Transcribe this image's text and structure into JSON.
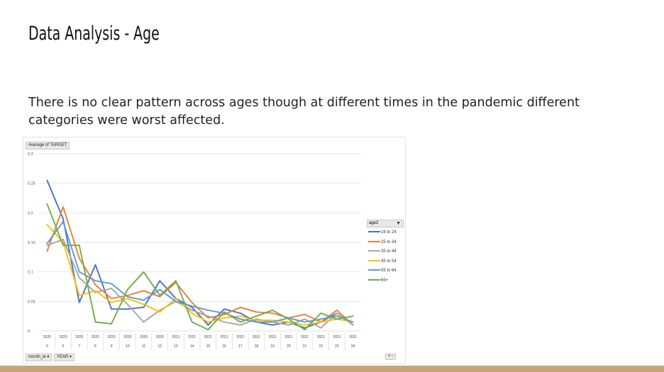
{
  "slide": {
    "title": "Data Analysis - Age",
    "subtitle": "There is no clear pattern across ages though at different times in the pandemic different categories were worst affected.",
    "accent_bar_color": "#c9a47a"
  },
  "pivot": {
    "value_field": "Average of TARGET",
    "legend_field": "age2",
    "row_fields": [
      "month_ie",
      "YEAR"
    ],
    "expand_collapse": "+ -"
  },
  "icons": {
    "filter": "filter-icon",
    "field_dropdown": "chevron-down-icon"
  },
  "chart_data": {
    "type": "line",
    "title": "",
    "ylabel": "Average of TARGET",
    "xlabel": "",
    "ylim": [
      0,
      0.3
    ],
    "yticks": [
      0,
      0.05,
      0.1,
      0.15,
      0.2,
      0.25,
      0.3
    ],
    "ytick_labels": [
      "0",
      "0.05",
      "0.1",
      "0.15",
      "0.2",
      "0.25",
      "0.3"
    ],
    "grid": true,
    "legend_position": "right",
    "categories": [
      {
        "year": "2020",
        "month": "5"
      },
      {
        "year": "2020",
        "month": "6"
      },
      {
        "year": "2020",
        "month": "7"
      },
      {
        "year": "2020",
        "month": "8"
      },
      {
        "year": "2020",
        "month": "9"
      },
      {
        "year": "2020",
        "month": "10"
      },
      {
        "year": "2020",
        "month": "11"
      },
      {
        "year": "2020",
        "month": "12"
      },
      {
        "year": "2021",
        "month": "13"
      },
      {
        "year": "2021",
        "month": "14"
      },
      {
        "year": "2021",
        "month": "15"
      },
      {
        "year": "2021",
        "month": "16"
      },
      {
        "year": "2021",
        "month": "17"
      },
      {
        "year": "2021",
        "month": "18"
      },
      {
        "year": "2021",
        "month": "19"
      },
      {
        "year": "2021",
        "month": "20"
      },
      {
        "year": "2021",
        "month": "21"
      },
      {
        "year": "2021",
        "month": "22"
      },
      {
        "year": "2021",
        "month": "23"
      },
      {
        "year": "2021",
        "month": "24"
      }
    ],
    "series": [
      {
        "name": "16 to 24",
        "color": "#4472c4",
        "values": [
          0.255,
          0.19,
          0.048,
          0.112,
          0.037,
          0.037,
          0.04,
          0.085,
          0.055,
          0.04,
          0.01,
          0.037,
          0.03,
          0.015,
          0.01,
          0.015,
          0.005,
          0.015,
          0.03,
          0.01
        ]
      },
      {
        "name": "25 to 34",
        "color": "#ed7d31",
        "values": [
          0.135,
          0.21,
          0.123,
          0.078,
          0.055,
          0.06,
          0.068,
          0.058,
          0.082,
          0.048,
          0.022,
          0.028,
          0.04,
          0.032,
          0.03,
          0.022,
          0.028,
          0.015,
          0.035,
          0.01
        ]
      },
      {
        "name": "35 to 44",
        "color": "#a5a5a5",
        "values": [
          0.145,
          0.155,
          0.09,
          0.065,
          0.072,
          0.045,
          0.015,
          0.035,
          0.05,
          0.035,
          0.025,
          0.015,
          0.01,
          0.02,
          0.015,
          0.01,
          0.02,
          0.005,
          0.03,
          0.01
        ]
      },
      {
        "name": "45 to 54",
        "color": "#ffc000",
        "values": [
          0.18,
          0.15,
          0.06,
          0.068,
          0.048,
          0.055,
          0.045,
          0.032,
          0.055,
          0.03,
          0.015,
          0.022,
          0.025,
          0.018,
          0.018,
          0.015,
          0.01,
          0.015,
          0.02,
          0.015
        ]
      },
      {
        "name": "55 to 64",
        "color": "#5b9bd5",
        "values": [
          0.148,
          0.185,
          0.1,
          0.085,
          0.08,
          0.058,
          0.052,
          0.07,
          0.05,
          0.042,
          0.035,
          0.03,
          0.02,
          0.015,
          0.015,
          0.022,
          0.015,
          0.02,
          0.025,
          0.015
        ]
      },
      {
        "name": "65+",
        "color": "#70ad47",
        "values": [
          0.215,
          0.145,
          0.145,
          0.015,
          0.012,
          0.07,
          0.1,
          0.06,
          0.085,
          0.015,
          0.002,
          0.032,
          0.015,
          0.025,
          0.035,
          0.02,
          0.002,
          0.03,
          0.02,
          0.025
        ]
      }
    ]
  }
}
